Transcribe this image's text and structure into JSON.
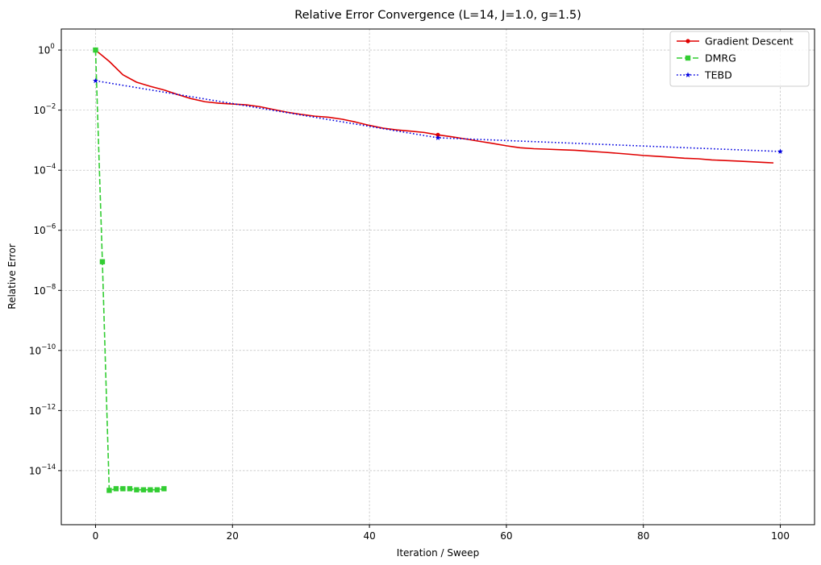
{
  "chart_data": {
    "type": "line",
    "title": "Relative Error Convergence (L=14, J=1.0, g=1.5)",
    "xlabel": "Iteration / Sweep",
    "ylabel": "Relative Error",
    "xlim": [
      -5,
      105
    ],
    "ylim_log10": [
      -15.8,
      0.7
    ],
    "y_scale": "log",
    "grid": true,
    "legend_position": "top-right",
    "x_ticks": [
      0,
      20,
      40,
      60,
      80,
      100
    ],
    "y_ticks": [
      {
        "exp": 0,
        "label_base": "10",
        "label_exp": "0"
      },
      {
        "exp": -2,
        "label_base": "10",
        "label_exp": "−2"
      },
      {
        "exp": -4,
        "label_base": "10",
        "label_exp": "−4"
      },
      {
        "exp": -6,
        "label_base": "10",
        "label_exp": "−6"
      },
      {
        "exp": -8,
        "label_base": "10",
        "label_exp": "−8"
      },
      {
        "exp": -10,
        "label_base": "10",
        "label_exp": "−10"
      },
      {
        "exp": -12,
        "label_base": "10",
        "label_exp": "−12"
      },
      {
        "exp": -14,
        "label_base": "10",
        "label_exp": "−14"
      }
    ],
    "series": [
      {
        "name": "Gradient Descent",
        "color": "#e00000",
        "line_style": "solid",
        "marker": "circle",
        "marker_at": [
          50
        ],
        "x": [
          0,
          2,
          4,
          6,
          8,
          10,
          12,
          14,
          16,
          18,
          20,
          22,
          24,
          26,
          28,
          30,
          32,
          34,
          36,
          38,
          40,
          42,
          44,
          46,
          48,
          50,
          52,
          54,
          56,
          58,
          60,
          62,
          64,
          66,
          68,
          70,
          72,
          74,
          76,
          78,
          80,
          82,
          84,
          86,
          88,
          90,
          92,
          94,
          96,
          98,
          99
        ],
        "y": [
          1.0,
          0.42,
          0.15,
          0.085,
          0.062,
          0.047,
          0.033,
          0.024,
          0.019,
          0.017,
          0.016,
          0.015,
          0.013,
          0.0105,
          0.0085,
          0.0072,
          0.0063,
          0.0058,
          0.005,
          0.004,
          0.0031,
          0.0025,
          0.0022,
          0.002,
          0.0018,
          0.0015,
          0.0013,
          0.0011,
          0.00092,
          0.00078,
          0.00065,
          0.00056,
          0.00052,
          0.0005,
          0.00048,
          0.00046,
          0.00043,
          0.0004,
          0.00037,
          0.00034,
          0.00031,
          0.00029,
          0.00027,
          0.00025,
          0.00024,
          0.00022,
          0.00021,
          0.0002,
          0.00019,
          0.00018,
          0.000175
        ]
      },
      {
        "name": "DMRG",
        "color": "#32cd32",
        "line_style": "dashed",
        "marker": "square",
        "x": [
          0,
          1,
          2,
          3,
          4,
          5,
          6,
          7,
          8,
          9,
          10
        ],
        "y": [
          1.0,
          9e-08,
          2.2e-15,
          2.5e-15,
          2.5e-15,
          2.5e-15,
          2.3e-15,
          2.3e-15,
          2.3e-15,
          2.3e-15,
          2.5e-15
        ]
      },
      {
        "name": "TEBD",
        "color": "#0000e0",
        "line_style": "dotted",
        "marker": "star",
        "x": [
          0,
          50,
          100
        ],
        "y": [
          0.095,
          0.0012,
          0.00042
        ]
      }
    ]
  }
}
